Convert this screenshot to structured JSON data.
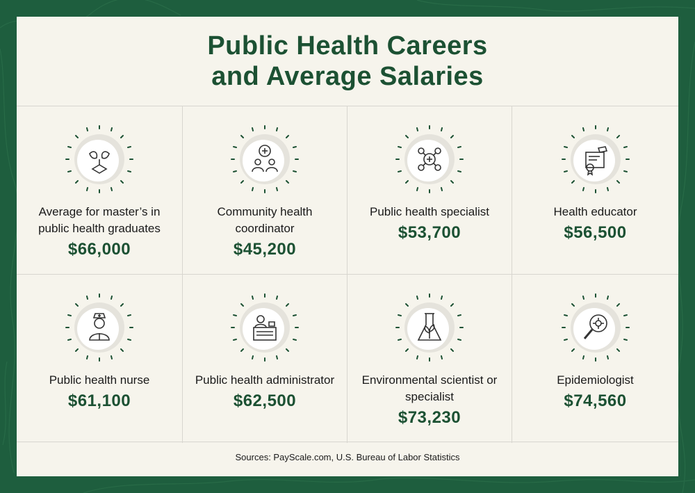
{
  "title": {
    "line1": "Public Health Careers",
    "line2": "and Average Salaries"
  },
  "careers": [
    {
      "label": "Average for master’s in public health graduates",
      "salary": "$66,000",
      "icon": "graduation-cap-hands-icon"
    },
    {
      "label": "Community health coordinator",
      "salary": "$45,200",
      "icon": "community-group-icon"
    },
    {
      "label": "Public health specialist",
      "salary": "$53,700",
      "icon": "health-network-icon"
    },
    {
      "label": "Health educator",
      "salary": "$56,500",
      "icon": "diploma-certificate-icon"
    },
    {
      "label": "Public health nurse",
      "salary": "$61,100",
      "icon": "nurse-icon"
    },
    {
      "label": "Public health administrator",
      "salary": "$62,500",
      "icon": "administrator-desk-icon"
    },
    {
      "label": "Environmental scientist or specialist",
      "salary": "$73,230",
      "icon": "plant-flask-icon"
    },
    {
      "label": "Epidemiologist",
      "salary": "$74,560",
      "icon": "virus-magnifier-icon"
    }
  ],
  "sources": "Sources: PayScale.com, U.S. Bureau of Labor Statistics",
  "colors": {
    "brand_green": "#1c5133",
    "frame_green": "#1e5e3e",
    "card_bg": "#f6f4ec"
  }
}
